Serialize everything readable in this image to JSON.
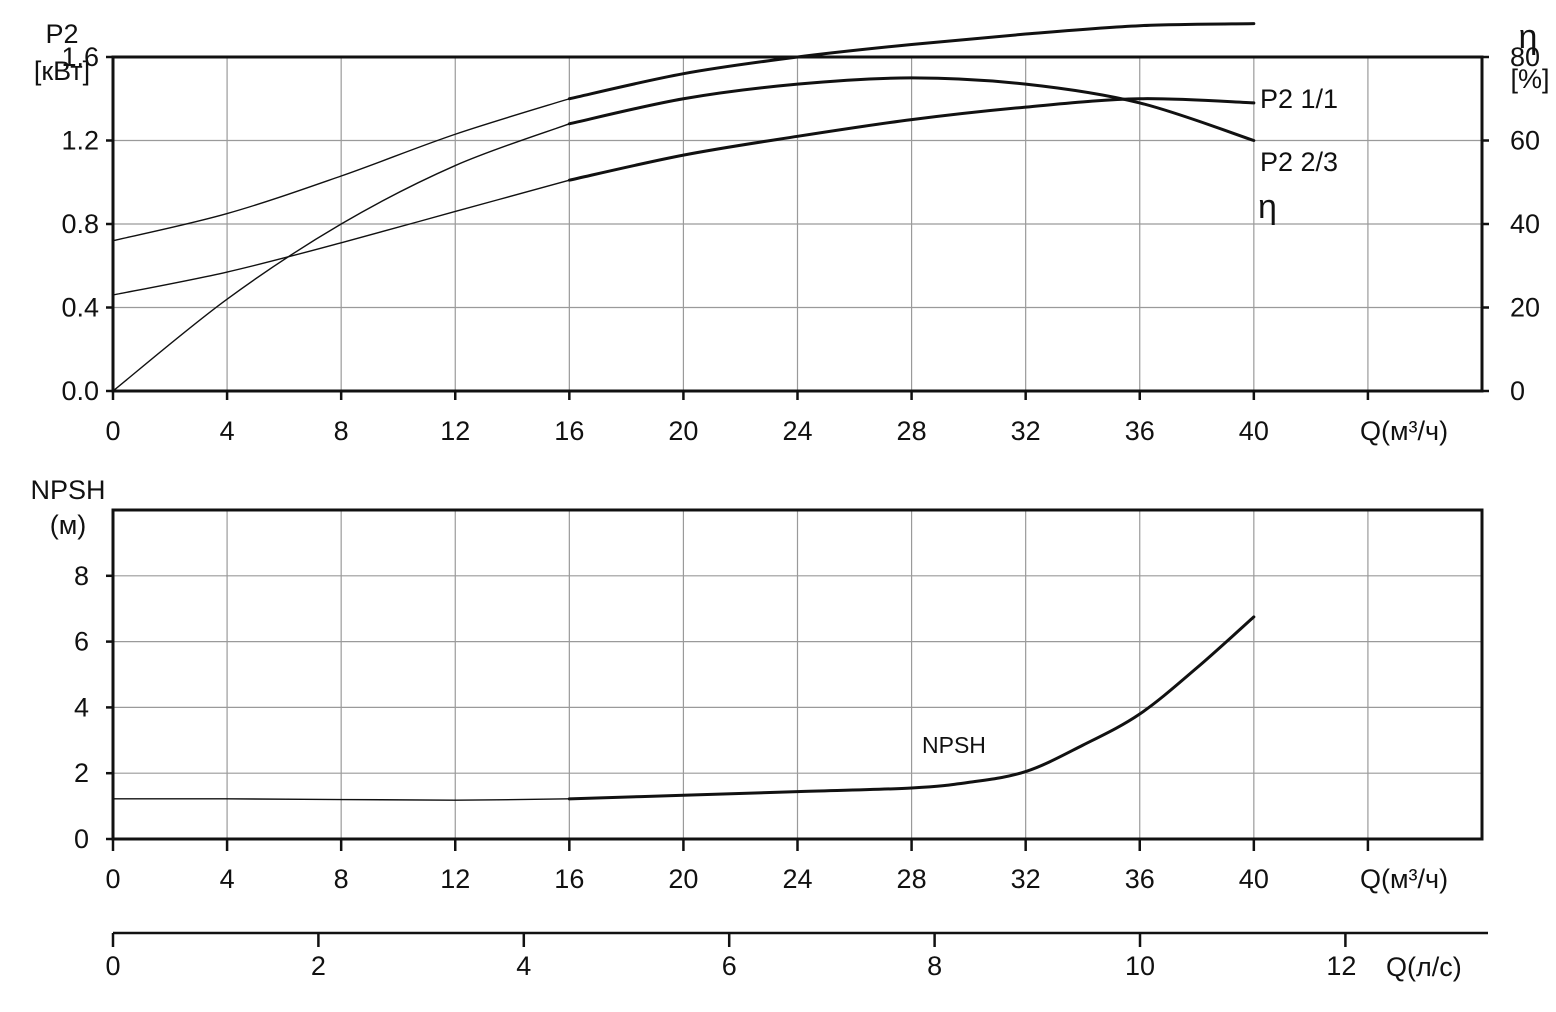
{
  "chart_data": [
    {
      "type": "line",
      "xlabel": "Q(м³/ч)",
      "ylabel_left": [
        "P2",
        "[кВт]"
      ],
      "ylabel_right": [
        "η",
        "[%]"
      ],
      "xlim": [
        0,
        48
      ],
      "ylim_left": [
        0,
        1.6
      ],
      "ylim_right": [
        0,
        80
      ],
      "x_ticks": [
        0,
        4,
        8,
        12,
        16,
        20,
        24,
        28,
        32,
        36,
        40
      ],
      "y_ticks_left": [
        "0.0",
        "0.4",
        "0.8",
        "1.2",
        "1.6"
      ],
      "y_ticks_right": [
        "0",
        "20",
        "40",
        "60",
        "80"
      ],
      "grid": true,
      "series": [
        {
          "name": "P2 1/1",
          "axis": "left",
          "x": [
            0,
            4,
            8,
            12,
            16,
            20,
            24,
            28,
            32,
            36,
            40
          ],
          "y": [
            0.72,
            0.85,
            1.03,
            1.23,
            1.4,
            1.52,
            1.6,
            1.66,
            1.71,
            1.75,
            1.76
          ]
        },
        {
          "name": "P2 2/3",
          "axis": "left",
          "x": [
            0,
            4,
            8,
            12,
            16,
            20,
            24,
            28,
            32,
            36,
            40
          ],
          "y": [
            0.46,
            0.57,
            0.71,
            0.86,
            1.01,
            1.13,
            1.22,
            1.3,
            1.36,
            1.4,
            1.38
          ]
        },
        {
          "name": "η",
          "axis": "right",
          "x": [
            0,
            4,
            8,
            12,
            16,
            20,
            24,
            28,
            32,
            36,
            40
          ],
          "y": [
            0,
            22,
            40,
            54,
            64,
            70,
            73.5,
            75,
            73.5,
            69,
            60
          ]
        }
      ]
    },
    {
      "type": "line",
      "xlabel": "Q(м³/ч)",
      "ylabel": [
        "NPSH",
        "(м)"
      ],
      "xlim": [
        0,
        48
      ],
      "ylim": [
        0,
        10
      ],
      "x_ticks": [
        0,
        4,
        8,
        12,
        16,
        20,
        24,
        28,
        32,
        36,
        40
      ],
      "y_ticks": [
        "0",
        "2",
        "4",
        "6",
        "8"
      ],
      "grid": true,
      "series": [
        {
          "name": "NPSH",
          "x": [
            0,
            4,
            8,
            12,
            16,
            20,
            24,
            28,
            30,
            32,
            34,
            36,
            38,
            40
          ],
          "y": [
            1.22,
            1.22,
            1.2,
            1.18,
            1.22,
            1.33,
            1.44,
            1.55,
            1.72,
            2.05,
            2.85,
            3.8,
            5.2,
            6.75
          ]
        }
      ]
    },
    {
      "type": "axis",
      "xlabel": "Q(л/с)",
      "xlim": [
        0,
        13.33
      ],
      "x_ticks": [
        0,
        2,
        4,
        6,
        8,
        10,
        12
      ]
    }
  ]
}
